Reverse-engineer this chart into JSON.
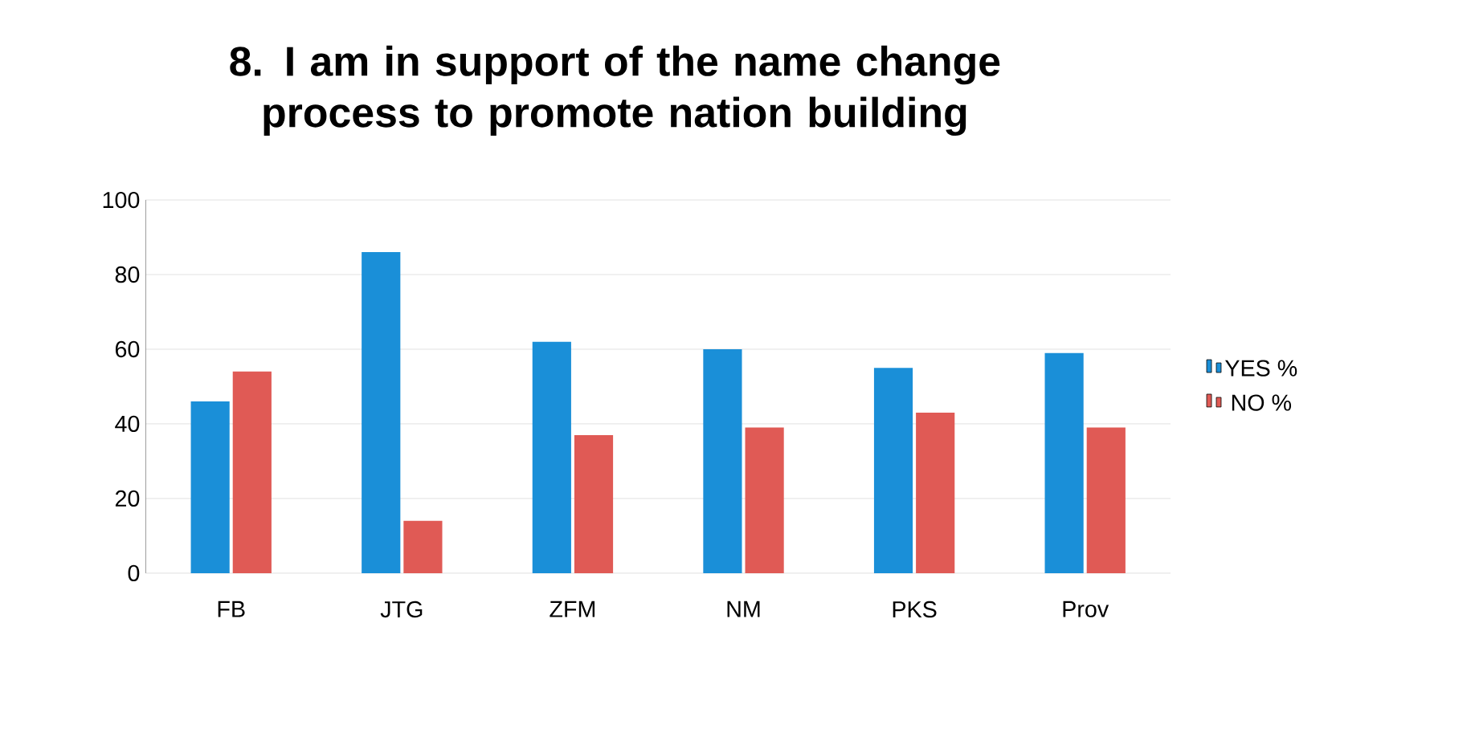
{
  "chart_data": {
    "type": "bar",
    "title": "8. I am in support of the name change process to promote nation building",
    "categories": [
      "FB",
      "JTG",
      "ZFM",
      "NM",
      "PKS",
      "Prov"
    ],
    "series": [
      {
        "name": "YES %",
        "color": "#1a8fd8",
        "values": [
          46,
          86,
          62,
          60,
          55,
          59
        ]
      },
      {
        "name": "NO %",
        "color": "#e05a55",
        "values": [
          54,
          14,
          37,
          39,
          43,
          39
        ]
      }
    ],
    "ylim": [
      0,
      100
    ],
    "yticks": [
      0,
      20,
      40,
      60,
      80,
      100
    ],
    "grid": "y",
    "legend": "right"
  }
}
